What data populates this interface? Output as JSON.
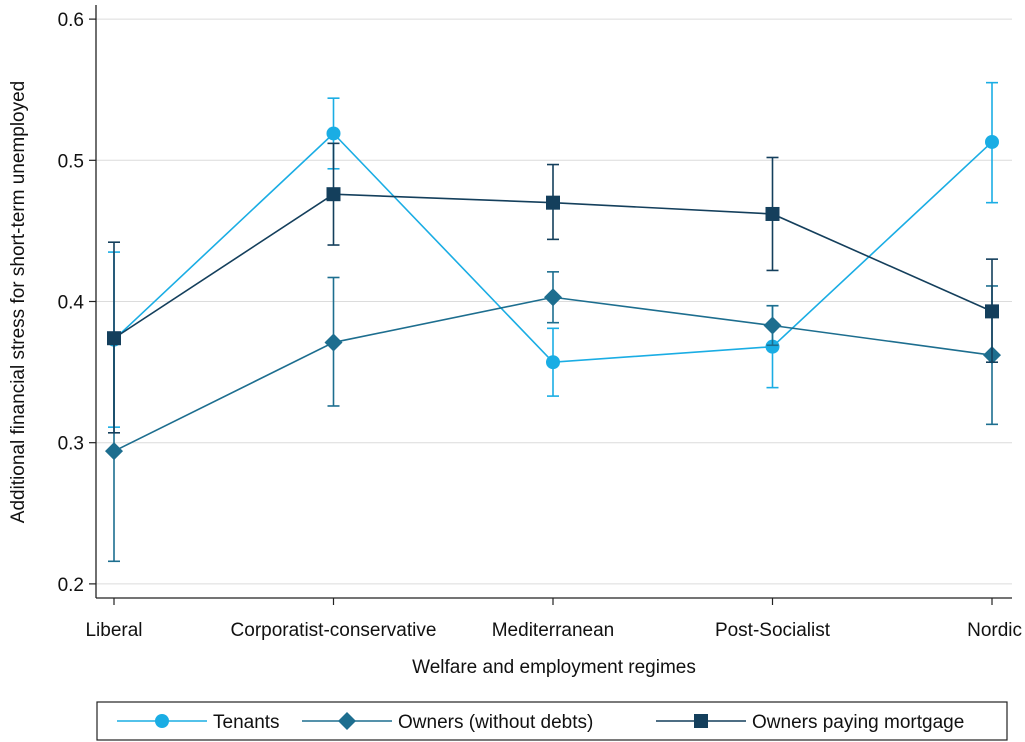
{
  "chart_data": {
    "type": "line",
    "title": "",
    "xlabel": "Welfare and employment regimes",
    "ylabel": "Additional financial stress for short-term unemployed",
    "categories": [
      "Liberal",
      "Corporatist-conservative",
      "Mediterranean",
      "Post-Socialist",
      "Nordic"
    ],
    "ylim": [
      0.19,
      0.61
    ],
    "yticks": [
      0.2,
      0.3,
      0.4,
      0.5,
      0.6
    ],
    "ytick_labels": [
      "0.2",
      "0.3",
      "0.4",
      "0.5",
      "0.6"
    ],
    "grid": true,
    "legend_position": "bottom",
    "series": [
      {
        "name": "Tenants",
        "marker": "circle",
        "color": "#1aade4",
        "values": [
          0.373,
          0.519,
          0.357,
          0.368,
          0.513
        ],
        "ci_low": [
          0.311,
          0.494,
          0.333,
          0.339,
          0.47
        ],
        "ci_high": [
          0.435,
          0.544,
          0.381,
          0.397,
          0.555
        ]
      },
      {
        "name": "Owners (without debts)",
        "marker": "diamond",
        "color": "#1d6e8f",
        "values": [
          0.294,
          0.371,
          0.403,
          0.383,
          0.362
        ],
        "ci_low": [
          0.216,
          0.326,
          0.385,
          0.369,
          0.313
        ],
        "ci_high": [
          0.372,
          0.417,
          0.421,
          0.397,
          0.411
        ]
      },
      {
        "name": "Owners paying mortgage",
        "marker": "square",
        "color": "#143f5c",
        "values": [
          0.374,
          0.476,
          0.47,
          0.462,
          0.393
        ],
        "ci_low": [
          0.307,
          0.44,
          0.444,
          0.422,
          0.357
        ],
        "ci_high": [
          0.442,
          0.512,
          0.497,
          0.502,
          0.43
        ]
      }
    ]
  }
}
